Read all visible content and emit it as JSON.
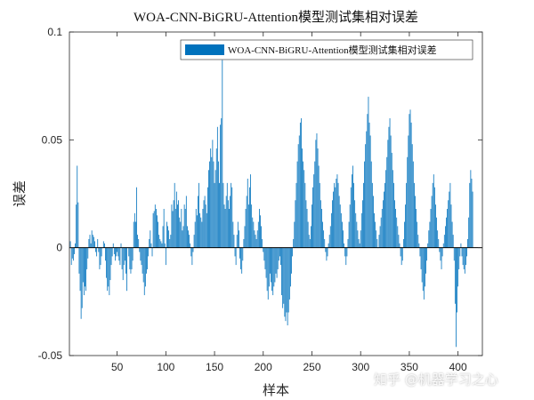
{
  "chart_data": {
    "type": "bar",
    "title": "WOA-CNN-BiGRU-Attention模型测试集相对误差",
    "xlabel": "样本",
    "ylabel": "误差",
    "xlim": [
      1,
      425
    ],
    "ylim": [
      -0.05,
      0.1
    ],
    "xticks": [
      50,
      100,
      150,
      200,
      250,
      300,
      350,
      400
    ],
    "yticks": [
      -0.05,
      0,
      0.05,
      0.1
    ],
    "ytick_labels": [
      "-0.05",
      "0",
      "0.05",
      "0.1"
    ],
    "legend": {
      "label": "WOA-CNN-BiGRU-Attention模型测试集相对误差",
      "location": "top-right"
    },
    "color": "#0072BD",
    "series": [
      {
        "name": "WOA-CNN-BiGRU-Attention模型测试集相对误差",
        "x_start": 1,
        "values": [
          0.0,
          0.003,
          -0.008,
          -0.005,
          -0.006,
          -0.003,
          0.002,
          0.02,
          0.038,
          0.021,
          -0.012,
          -0.02,
          -0.033,
          -0.028,
          -0.016,
          -0.022,
          -0.018,
          -0.02,
          -0.01,
          -0.005,
          0.004,
          0.006,
          0.002,
          0.008,
          0.006,
          0.005,
          0.003,
          -0.002,
          -0.004,
          0.004,
          -0.002,
          -0.01,
          -0.008,
          -0.004,
          0.0,
          0.003,
          0.002,
          -0.006,
          -0.014,
          -0.02,
          -0.018,
          -0.022,
          -0.015,
          -0.008,
          -0.004,
          0.002,
          -0.003,
          -0.006,
          -0.004,
          -0.002,
          -0.004,
          -0.006,
          -0.008,
          0.002,
          -0.01,
          -0.015,
          -0.008,
          -0.006,
          -0.012,
          -0.02,
          0.0,
          -0.004,
          -0.01,
          -0.012,
          -0.01,
          -0.006,
          0.012,
          0.016,
          0.012,
          0.028,
          0.006,
          0.004,
          -0.002,
          -0.006,
          -0.008,
          -0.012,
          -0.016,
          -0.022,
          -0.018,
          -0.012,
          -0.01,
          -0.004,
          0.004,
          0.008,
          0.002,
          -0.004,
          0.016,
          0.017,
          0.02,
          0.018,
          0.015,
          0.012,
          0.006,
          0.004,
          0.003,
          0.002,
          0.01,
          0.018,
          0.002,
          -0.008,
          0.012,
          0.01,
          0.008,
          0.004,
          0.006,
          0.02,
          0.017,
          0.022,
          0.03,
          0.018,
          0.026,
          0.02,
          0.022,
          0.014,
          0.012,
          0.018,
          0.008,
          0.01,
          0.02,
          0.018,
          0.024,
          0.01,
          0.008,
          0.006,
          0.002,
          -0.004,
          -0.008,
          -0.002,
          0.006,
          0.012,
          0.018,
          0.015,
          0.024,
          0.03,
          0.016,
          0.014,
          0.012,
          0.018,
          0.022,
          0.024,
          0.02,
          0.016,
          0.028,
          0.036,
          0.04,
          0.046,
          0.042,
          0.05,
          0.04,
          0.03,
          0.036,
          0.046,
          0.056,
          0.04,
          0.03,
          0.057,
          0.06,
          0.087,
          0.03,
          0.02,
          0.018,
          0.024,
          0.03,
          0.022,
          0.018,
          0.024,
          0.03,
          0.028,
          0.012,
          0.006,
          -0.004,
          -0.008,
          0.006,
          0.012,
          0.008,
          -0.005,
          -0.01,
          -0.012,
          -0.006,
          0.004,
          0.01,
          0.018,
          0.024,
          0.032,
          0.02,
          0.028,
          0.034,
          0.02,
          0.014,
          0.012,
          0.008,
          0.006,
          0.004,
          0.008,
          0.012,
          0.018,
          0.015,
          0.01,
          0.004,
          -0.002,
          -0.006,
          -0.01,
          -0.014,
          -0.02,
          -0.024,
          -0.018,
          -0.012,
          -0.016,
          -0.02,
          -0.022,
          -0.018,
          -0.016,
          -0.012,
          -0.014,
          -0.01,
          -0.006,
          -0.004,
          -0.008,
          -0.022,
          -0.028,
          -0.026,
          -0.032,
          -0.034,
          -0.03,
          -0.036,
          -0.03,
          -0.024,
          -0.018,
          -0.012,
          -0.004,
          0.004,
          0.012,
          0.022,
          0.03,
          0.04,
          0.048,
          0.052,
          0.058,
          0.06,
          0.046,
          0.04,
          0.036,
          0.03,
          0.022,
          0.018,
          0.012,
          0.006,
          0.004,
          0.01,
          0.02,
          0.028,
          0.034,
          0.04,
          0.05,
          0.053,
          0.046,
          0.038,
          0.03,
          0.022,
          0.018,
          0.012,
          0.008,
          0.004,
          -0.002,
          -0.006,
          -0.004,
          0.002,
          0.006,
          0.01,
          0.016,
          0.022,
          0.026,
          0.03,
          0.028,
          0.032,
          0.034,
          0.03,
          0.024,
          0.02,
          0.016,
          0.012,
          0.008,
          0.002,
          -0.004,
          -0.008,
          -0.004,
          0.004,
          0.012,
          0.02,
          0.028,
          0.034,
          0.038,
          0.03,
          0.022,
          0.016,
          0.012,
          0.008,
          0.004,
          0.002,
          0.008,
          0.016,
          0.022,
          0.03,
          0.04,
          0.048,
          0.054,
          0.062,
          0.07,
          0.058,
          0.052,
          0.04,
          0.03,
          0.024,
          0.016,
          0.012,
          0.008,
          0.004,
          0.0,
          0.006,
          0.01,
          0.014,
          0.018,
          0.022,
          0.026,
          0.03,
          0.036,
          0.042,
          0.05,
          0.056,
          0.06,
          0.052,
          0.044,
          0.036,
          0.03,
          0.022,
          0.018,
          0.014,
          0.01,
          0.006,
          0.002,
          -0.004,
          -0.008,
          -0.006,
          0.004,
          0.012,
          0.02,
          0.03,
          0.042,
          0.052,
          0.062,
          0.064,
          0.058,
          0.048,
          0.04,
          0.03,
          0.024,
          0.018,
          0.012,
          0.006,
          0.002,
          -0.004,
          -0.01,
          -0.016,
          -0.02,
          -0.024,
          -0.018,
          -0.012,
          -0.006,
          0.002,
          0.008,
          0.012,
          0.018,
          0.024,
          0.03,
          0.034,
          0.028,
          0.02,
          0.014,
          0.008,
          0.004,
          -0.002,
          -0.006,
          -0.01,
          -0.004,
          0.002,
          0.006,
          0.01,
          0.014,
          0.018,
          0.022,
          0.026,
          0.03,
          0.02,
          0.012,
          0.006,
          -0.006,
          -0.026,
          -0.046,
          -0.03,
          -0.018,
          -0.01,
          -0.004,
          0.002,
          -0.004,
          -0.008,
          -0.01,
          -0.012,
          -0.008,
          -0.004,
          0.004,
          0.014,
          0.03,
          0.036,
          0.032,
          0.026
        ]
      }
    ]
  },
  "watermark": "知乎 @机器学习之心"
}
